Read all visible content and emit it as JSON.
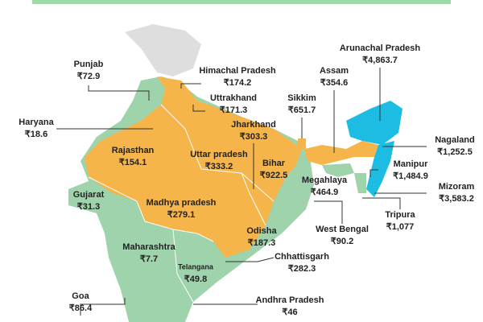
{
  "states": [
    {
      "name": "Punjab",
      "value": "₹72.9"
    },
    {
      "name": "Himachal Pradesh",
      "value": "₹174.2"
    },
    {
      "name": "Uttrakhand",
      "value": "₹171.3"
    },
    {
      "name": "Haryana",
      "value": "₹18.6"
    },
    {
      "name": "Jharkhand",
      "value": "₹303.3"
    },
    {
      "name": "Sikkim",
      "value": "₹651.7"
    },
    {
      "name": "Assam",
      "value": "₹354.6"
    },
    {
      "name": "Arunachal Pradesh",
      "value": "₹4,863.7"
    },
    {
      "name": "Nagaland",
      "value": "₹1,252.5"
    },
    {
      "name": "Rajasthan",
      "value": "₹154.1"
    },
    {
      "name": "Uttar pradesh",
      "value": "₹333.2"
    },
    {
      "name": "Bihar",
      "value": "₹922.5"
    },
    {
      "name": "Manipur",
      "value": "₹1,484.9"
    },
    {
      "name": "Mizoram",
      "value": "₹3,583.2"
    },
    {
      "name": "Megahlaya",
      "value": "₹464.9"
    },
    {
      "name": "Gujarat",
      "value": "₹31.3"
    },
    {
      "name": "Madhya pradesh",
      "value": "₹279.1"
    },
    {
      "name": "Tripura",
      "value": "₹1,077"
    },
    {
      "name": "West Bengal",
      "value": "₹90.2"
    },
    {
      "name": "Odisha",
      "value": "₹187.3"
    },
    {
      "name": "Maharashtra",
      "value": "₹7.7"
    },
    {
      "name": "Chhattisgarh",
      "value": "₹282.3"
    },
    {
      "name": "Telangana",
      "value": "₹49.8"
    },
    {
      "name": "Goa",
      "value": "₹86.4"
    },
    {
      "name": "Andhra Pradesh",
      "value": "₹46"
    }
  ]
}
